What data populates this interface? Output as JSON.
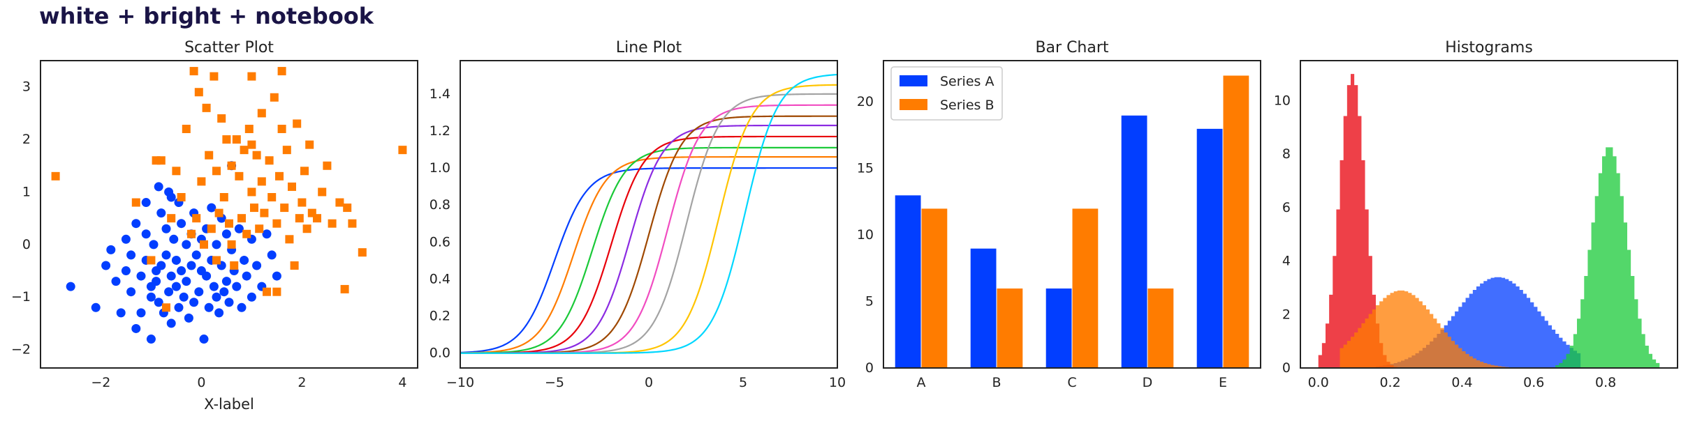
{
  "figure_title": "white + bright + notebook",
  "colors": {
    "blue": "#023eff",
    "orange": "#ff7c00",
    "green": "#1ac938",
    "red": "#e8000b",
    "purple": "#8b2be2",
    "brown": "#9f4800",
    "pink": "#f14cc1",
    "gray": "#a3a3a3",
    "yellow": "#ffc400",
    "cyan": "#00d7ff"
  },
  "chart_data": [
    {
      "type": "scatter",
      "title": "Scatter Plot",
      "xlabel": "X-label",
      "ylabel": "",
      "xlim": [
        -3.2,
        4.3
      ],
      "ylim": [
        -2.35,
        3.5
      ],
      "xticks": [
        "−2",
        "0",
        "2",
        "4"
      ],
      "yticks": [
        "−2",
        "−1",
        "0",
        "1",
        "2",
        "3"
      ],
      "series": [
        {
          "marker": "circle",
          "color": "#023eff",
          "points": [
            [
              -2.6,
              -0.8
            ],
            [
              -2.1,
              -1.2
            ],
            [
              -1.9,
              -0.4
            ],
            [
              -1.8,
              -0.1
            ],
            [
              -1.7,
              -0.7
            ],
            [
              -1.6,
              -1.3
            ],
            [
              -1.5,
              -0.5
            ],
            [
              -1.5,
              0.1
            ],
            [
              -1.4,
              -0.2
            ],
            [
              -1.4,
              -0.9
            ],
            [
              -1.3,
              -1.6
            ],
            [
              -1.3,
              0.4
            ],
            [
              -1.2,
              -0.6
            ],
            [
              -1.2,
              -1.3
            ],
            [
              -1.1,
              0.2
            ],
            [
              -1.1,
              -0.3
            ],
            [
              -1.0,
              -1.0
            ],
            [
              -1.0,
              -0.8
            ],
            [
              -1.0,
              -1.8
            ],
            [
              -0.95,
              0.0
            ],
            [
              -0.9,
              -0.5
            ],
            [
              -0.9,
              -0.7
            ],
            [
              -0.85,
              -1.1
            ],
            [
              -0.8,
              0.6
            ],
            [
              -0.8,
              -0.4
            ],
            [
              -0.75,
              -1.3
            ],
            [
              -0.7,
              0.3
            ],
            [
              -0.7,
              -0.2
            ],
            [
              -0.65,
              1.0
            ],
            [
              -0.65,
              -0.9
            ],
            [
              -0.6,
              -0.6
            ],
            [
              -0.6,
              -1.5
            ],
            [
              -0.55,
              0.1
            ],
            [
              -0.5,
              -0.3
            ],
            [
              -0.5,
              -0.8
            ],
            [
              -0.45,
              0.8
            ],
            [
              -0.45,
              -1.2
            ],
            [
              -0.4,
              0.4
            ],
            [
              -0.4,
              -0.5
            ],
            [
              -0.35,
              -1.0
            ],
            [
              -0.3,
              0.0
            ],
            [
              -0.3,
              -0.7
            ],
            [
              -0.25,
              -1.4
            ],
            [
              -0.2,
              0.2
            ],
            [
              -0.2,
              -0.4
            ],
            [
              -0.15,
              0.6
            ],
            [
              -0.15,
              -1.1
            ],
            [
              -0.1,
              -0.2
            ],
            [
              -0.05,
              -0.9
            ],
            [
              0.0,
              0.1
            ],
            [
              0.0,
              -0.5
            ],
            [
              0.05,
              -1.8
            ],
            [
              0.1,
              0.3
            ],
            [
              0.1,
              -0.6
            ],
            [
              0.15,
              -1.2
            ],
            [
              0.2,
              0.7
            ],
            [
              0.2,
              -0.3
            ],
            [
              0.25,
              -0.8
            ],
            [
              0.3,
              0.0
            ],
            [
              0.3,
              -1.0
            ],
            [
              0.35,
              -1.3
            ],
            [
              0.4,
              0.5
            ],
            [
              0.4,
              -0.4
            ],
            [
              0.45,
              -0.9
            ],
            [
              0.5,
              0.2
            ],
            [
              0.5,
              -0.7
            ],
            [
              0.55,
              -1.1
            ],
            [
              0.6,
              -0.1
            ],
            [
              0.6,
              1.5
            ],
            [
              0.65,
              -0.5
            ],
            [
              0.7,
              -0.8
            ],
            [
              0.75,
              0.3
            ],
            [
              0.8,
              -1.2
            ],
            [
              0.85,
              -0.3
            ],
            [
              0.9,
              -0.6
            ],
            [
              1.0,
              0.1
            ],
            [
              1.0,
              -1.0
            ],
            [
              1.1,
              -0.4
            ],
            [
              1.2,
              -0.8
            ],
            [
              1.3,
              0.2
            ],
            [
              1.4,
              -0.2
            ],
            [
              1.5,
              -0.6
            ],
            [
              -1.1,
              0.8
            ],
            [
              -0.85,
              1.1
            ],
            [
              -0.6,
              0.9
            ]
          ]
        },
        {
          "marker": "square",
          "color": "#ff7c00",
          "points": [
            [
              -2.9,
              1.3
            ],
            [
              -1.3,
              0.8
            ],
            [
              -1.0,
              -0.3
            ],
            [
              -0.9,
              1.6
            ],
            [
              -0.8,
              1.6
            ],
            [
              -0.7,
              -1.2
            ],
            [
              -0.6,
              0.5
            ],
            [
              -0.5,
              1.4
            ],
            [
              -0.4,
              0.9
            ],
            [
              -0.3,
              2.2
            ],
            [
              -0.2,
              0.2
            ],
            [
              -0.15,
              3.3
            ],
            [
              -0.1,
              0.5
            ],
            [
              -0.05,
              2.9
            ],
            [
              0.0,
              1.2
            ],
            [
              0.05,
              0.0
            ],
            [
              0.1,
              2.6
            ],
            [
              0.15,
              1.7
            ],
            [
              0.2,
              0.3
            ],
            [
              0.25,
              3.2
            ],
            [
              0.3,
              1.4
            ],
            [
              0.35,
              0.6
            ],
            [
              0.4,
              2.4
            ],
            [
              0.45,
              0.9
            ],
            [
              0.5,
              2.0
            ],
            [
              0.55,
              0.4
            ],
            [
              0.6,
              1.5
            ],
            [
              0.65,
              -0.4
            ],
            [
              0.7,
              2.0
            ],
            [
              0.75,
              1.3
            ],
            [
              0.8,
              0.5
            ],
            [
              0.85,
              1.8
            ],
            [
              0.9,
              0.2
            ],
            [
              0.95,
              2.2
            ],
            [
              1.0,
              1.0
            ],
            [
              1.0,
              3.2
            ],
            [
              1.05,
              0.7
            ],
            [
              1.1,
              1.7
            ],
            [
              1.15,
              0.3
            ],
            [
              1.2,
              1.2
            ],
            [
              1.2,
              2.5
            ],
            [
              1.25,
              0.6
            ],
            [
              1.3,
              -0.9
            ],
            [
              1.35,
              1.6
            ],
            [
              1.4,
              0.9
            ],
            [
              1.45,
              2.8
            ],
            [
              1.5,
              0.4
            ],
            [
              1.5,
              -0.9
            ],
            [
              1.55,
              1.3
            ],
            [
              1.6,
              3.3
            ],
            [
              1.6,
              2.2
            ],
            [
              1.65,
              0.7
            ],
            [
              1.7,
              1.8
            ],
            [
              1.75,
              0.1
            ],
            [
              1.8,
              1.1
            ],
            [
              1.85,
              -0.4
            ],
            [
              1.9,
              2.3
            ],
            [
              1.95,
              0.5
            ],
            [
              2.0,
              0.8
            ],
            [
              2.05,
              1.4
            ],
            [
              2.1,
              0.3
            ],
            [
              2.15,
              1.9
            ],
            [
              2.2,
              0.6
            ],
            [
              2.3,
              0.5
            ],
            [
              2.4,
              1.0
            ],
            [
              2.5,
              1.5
            ],
            [
              2.6,
              0.4
            ],
            [
              2.75,
              0.8
            ],
            [
              2.9,
              0.7
            ],
            [
              2.85,
              -0.85
            ],
            [
              3.0,
              0.4
            ],
            [
              3.2,
              -0.15
            ],
            [
              4.0,
              1.8
            ],
            [
              0.3,
              -0.3
            ],
            [
              1.0,
              1.9
            ],
            [
              0.6,
              0.0
            ]
          ]
        }
      ]
    },
    {
      "type": "line",
      "title": "Line Plot",
      "xlabel": "",
      "ylabel": "",
      "xlim": [
        -10,
        10
      ],
      "ylim": [
        -0.08,
        1.58
      ],
      "xticks": [
        "−10",
        "−5",
        "0",
        "5",
        "10"
      ],
      "yticks": [
        "0.0",
        "0.2",
        "0.4",
        "0.6",
        "0.8",
        "1.0",
        "1.2",
        "1.4"
      ],
      "function": "sigmoid",
      "series": [
        {
          "center": -5,
          "amplitude": 1.0,
          "color": "#023eff"
        },
        {
          "center": -4,
          "amplitude": 1.06,
          "color": "#ff7c00"
        },
        {
          "center": -3,
          "amplitude": 1.11,
          "color": "#1ac938"
        },
        {
          "center": -2,
          "amplitude": 1.17,
          "color": "#e8000b"
        },
        {
          "center": -1,
          "amplitude": 1.23,
          "color": "#8b2be2"
        },
        {
          "center": 0,
          "amplitude": 1.28,
          "color": "#9f4800"
        },
        {
          "center": 1,
          "amplitude": 1.34,
          "color": "#f14cc1"
        },
        {
          "center": 2,
          "amplitude": 1.4,
          "color": "#a3a3a3"
        },
        {
          "center": 3.7,
          "amplitude": 1.45,
          "color": "#ffc400"
        },
        {
          "center": 5.1,
          "amplitude": 1.51,
          "color": "#00d7ff"
        }
      ]
    },
    {
      "type": "bar",
      "title": "Bar Chart",
      "xlabel": "",
      "ylabel": "",
      "categories": [
        "A",
        "B",
        "C",
        "D",
        "E"
      ],
      "ylim": [
        0,
        23.1
      ],
      "yticks": [
        "0",
        "5",
        "10",
        "15",
        "20"
      ],
      "legend_position": "top-left",
      "series": [
        {
          "name": "Series A",
          "color": "#023eff",
          "values": [
            13,
            9,
            6,
            19,
            18
          ]
        },
        {
          "name": "Series B",
          "color": "#ff7c00",
          "values": [
            12,
            6,
            12,
            6,
            22
          ]
        }
      ]
    },
    {
      "type": "histogram",
      "title": "Histograms",
      "xlabel": "",
      "ylabel": "",
      "xlim": [
        -0.05,
        1.0
      ],
      "ylim": [
        0,
        11.5
      ],
      "xticks": [
        "0.0",
        "0.2",
        "0.4",
        "0.6",
        "0.8"
      ],
      "yticks": [
        "0",
        "2",
        "4",
        "6",
        "8",
        "10"
      ],
      "opacity": 0.75,
      "series": [
        {
          "color": "#023eff",
          "mean": 0.5,
          "sd": 0.118,
          "peak": 3.4,
          "range": [
            0.16,
            0.73
          ]
        },
        {
          "color": "#e8000b",
          "mean": 0.095,
          "sd": 0.036,
          "peak": 11.0,
          "range": [
            0.0,
            0.3
          ]
        },
        {
          "color": "#ff7c00",
          "mean": 0.23,
          "sd": 0.1,
          "peak": 2.9,
          "range": [
            0.06,
            0.68
          ]
        },
        {
          "color": "#1ac938",
          "mean": 0.81,
          "sd": 0.049,
          "peak": 8.3,
          "range": [
            0.66,
            0.95
          ]
        }
      ]
    }
  ]
}
